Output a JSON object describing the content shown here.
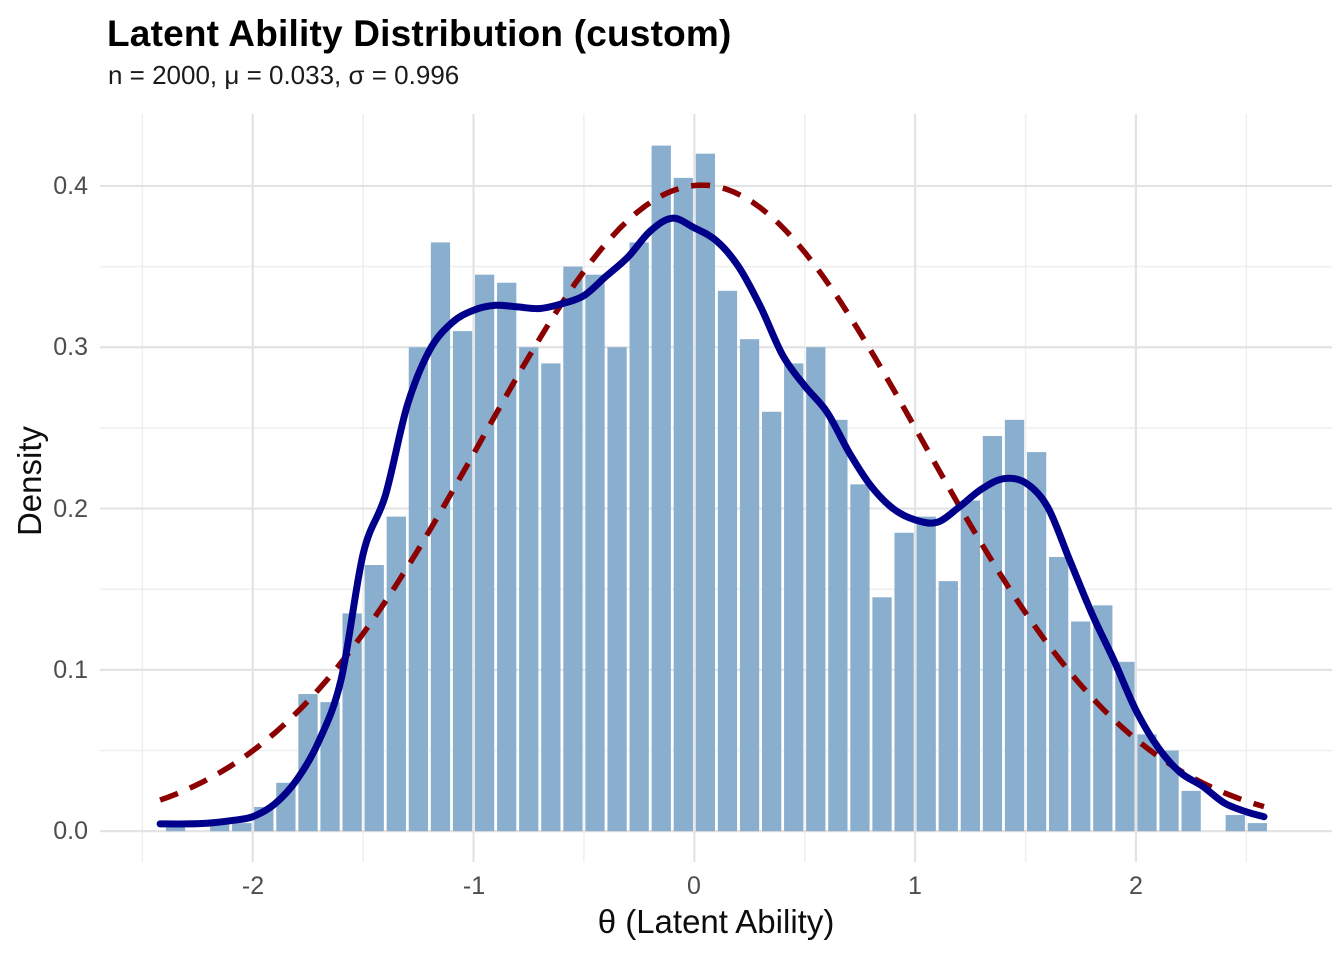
{
  "chart_data": {
    "type": "bar",
    "subtype": "histogram-with-density",
    "title": "Latent Ability Distribution (custom)",
    "subtitle": "n = 2000, μ = 0.033, σ = 0.996",
    "xlabel": "θ (Latent Ability)",
    "ylabel": "Density",
    "grid": true,
    "legend": "none",
    "xlim": [
      -2.692,
      2.888
    ],
    "ylim": [
      -0.0191,
      0.4446
    ],
    "binwidth": 0.1,
    "x_ticks": [
      {
        "v": -2,
        "label": "-2"
      },
      {
        "v": -1,
        "label": "-1"
      },
      {
        "v": 0,
        "label": "0"
      },
      {
        "v": 1,
        "label": "1"
      },
      {
        "v": 2,
        "label": "2"
      }
    ],
    "y_ticks": [
      {
        "v": 0.0,
        "label": "0.0"
      },
      {
        "v": 0.1,
        "label": "0.1"
      },
      {
        "v": 0.2,
        "label": "0.2"
      },
      {
        "v": 0.3,
        "label": "0.3"
      },
      {
        "v": 0.4,
        "label": "0.4"
      }
    ],
    "x_minor": [
      -2.5,
      -1.5,
      -0.5,
      0.5,
      1.5,
      2.5
    ],
    "y_minor": [
      0.05,
      0.15,
      0.25,
      0.35
    ],
    "bars": [
      {
        "x": -2.35,
        "density": 0.005
      },
      {
        "x": -2.15,
        "density": 0.005
      },
      {
        "x": -2.05,
        "density": 0.005
      },
      {
        "x": -1.95,
        "density": 0.015
      },
      {
        "x": -1.85,
        "density": 0.03
      },
      {
        "x": -1.75,
        "density": 0.085
      },
      {
        "x": -1.65,
        "density": 0.08
      },
      {
        "x": -1.55,
        "density": 0.135
      },
      {
        "x": -1.45,
        "density": 0.165
      },
      {
        "x": -1.35,
        "density": 0.195
      },
      {
        "x": -1.25,
        "density": 0.3
      },
      {
        "x": -1.15,
        "density": 0.365
      },
      {
        "x": -1.05,
        "density": 0.31
      },
      {
        "x": -0.95,
        "density": 0.345
      },
      {
        "x": -0.85,
        "density": 0.34
      },
      {
        "x": -0.75,
        "density": 0.3
      },
      {
        "x": -0.65,
        "density": 0.29
      },
      {
        "x": -0.55,
        "density": 0.35
      },
      {
        "x": -0.45,
        "density": 0.345
      },
      {
        "x": -0.35,
        "density": 0.3
      },
      {
        "x": -0.25,
        "density": 0.365
      },
      {
        "x": -0.15,
        "density": 0.425
      },
      {
        "x": -0.05,
        "density": 0.405
      },
      {
        "x": 0.05,
        "density": 0.42
      },
      {
        "x": 0.15,
        "density": 0.335
      },
      {
        "x": 0.25,
        "density": 0.305
      },
      {
        "x": 0.35,
        "density": 0.26
      },
      {
        "x": 0.45,
        "density": 0.29
      },
      {
        "x": 0.55,
        "density": 0.3
      },
      {
        "x": 0.65,
        "density": 0.255
      },
      {
        "x": 0.75,
        "density": 0.215
      },
      {
        "x": 0.85,
        "density": 0.145
      },
      {
        "x": 0.95,
        "density": 0.185
      },
      {
        "x": 1.05,
        "density": 0.195
      },
      {
        "x": 1.15,
        "density": 0.155
      },
      {
        "x": 1.25,
        "density": 0.205
      },
      {
        "x": 1.35,
        "density": 0.245
      },
      {
        "x": 1.45,
        "density": 0.255
      },
      {
        "x": 1.55,
        "density": 0.235
      },
      {
        "x": 1.65,
        "density": 0.17
      },
      {
        "x": 1.75,
        "density": 0.13
      },
      {
        "x": 1.85,
        "density": 0.14
      },
      {
        "x": 1.95,
        "density": 0.105
      },
      {
        "x": 2.05,
        "density": 0.06
      },
      {
        "x": 2.15,
        "density": 0.05
      },
      {
        "x": 2.25,
        "density": 0.025
      },
      {
        "x": 2.45,
        "density": 0.01
      },
      {
        "x": 2.55,
        "density": 0.005
      }
    ],
    "kde_curve": [
      [
        -2.42,
        0.0045
      ],
      [
        -2.3,
        0.0045
      ],
      [
        -2.2,
        0.005
      ],
      [
        -2.1,
        0.0065
      ],
      [
        -2.0,
        0.009
      ],
      [
        -1.9,
        0.017
      ],
      [
        -1.8,
        0.032
      ],
      [
        -1.7,
        0.056
      ],
      [
        -1.6,
        0.094
      ],
      [
        -1.5,
        0.172
      ],
      [
        -1.4,
        0.208
      ],
      [
        -1.3,
        0.264
      ],
      [
        -1.2,
        0.298
      ],
      [
        -1.1,
        0.315
      ],
      [
        -1.0,
        0.323
      ],
      [
        -0.9,
        0.326
      ],
      [
        -0.8,
        0.325
      ],
      [
        -0.7,
        0.324
      ],
      [
        -0.6,
        0.327
      ],
      [
        -0.5,
        0.332
      ],
      [
        -0.4,
        0.344
      ],
      [
        -0.3,
        0.356
      ],
      [
        -0.2,
        0.372
      ],
      [
        -0.1,
        0.38
      ],
      [
        0.0,
        0.374
      ],
      [
        0.1,
        0.366
      ],
      [
        0.2,
        0.35
      ],
      [
        0.3,
        0.325
      ],
      [
        0.4,
        0.295
      ],
      [
        0.5,
        0.276
      ],
      [
        0.6,
        0.26
      ],
      [
        0.7,
        0.235
      ],
      [
        0.8,
        0.214
      ],
      [
        0.9,
        0.2
      ],
      [
        1.0,
        0.193
      ],
      [
        1.1,
        0.1915
      ],
      [
        1.2,
        0.201
      ],
      [
        1.3,
        0.212
      ],
      [
        1.4,
        0.2185
      ],
      [
        1.5,
        0.216
      ],
      [
        1.6,
        0.201
      ],
      [
        1.7,
        0.168
      ],
      [
        1.8,
        0.135
      ],
      [
        1.9,
        0.106
      ],
      [
        2.0,
        0.075
      ],
      [
        2.1,
        0.052
      ],
      [
        2.2,
        0.0365
      ],
      [
        2.3,
        0.028
      ],
      [
        2.4,
        0.0175
      ],
      [
        2.5,
        0.012
      ],
      [
        2.58,
        0.009
      ]
    ],
    "normal_curve": {
      "mu": 0.033,
      "sigma": 0.996,
      "range": [
        -2.42,
        2.58
      ]
    },
    "colors": {
      "bar_fill": "#8AAECD",
      "bar_gap": "#FFFFFF",
      "kde_line": "#00008B",
      "normal_line": "#8B0000",
      "grid_major": "#E3E3E3",
      "grid_minor": "#EFEFEF",
      "title_text": "#000000",
      "tick_text": "#4D4D4D"
    }
  }
}
